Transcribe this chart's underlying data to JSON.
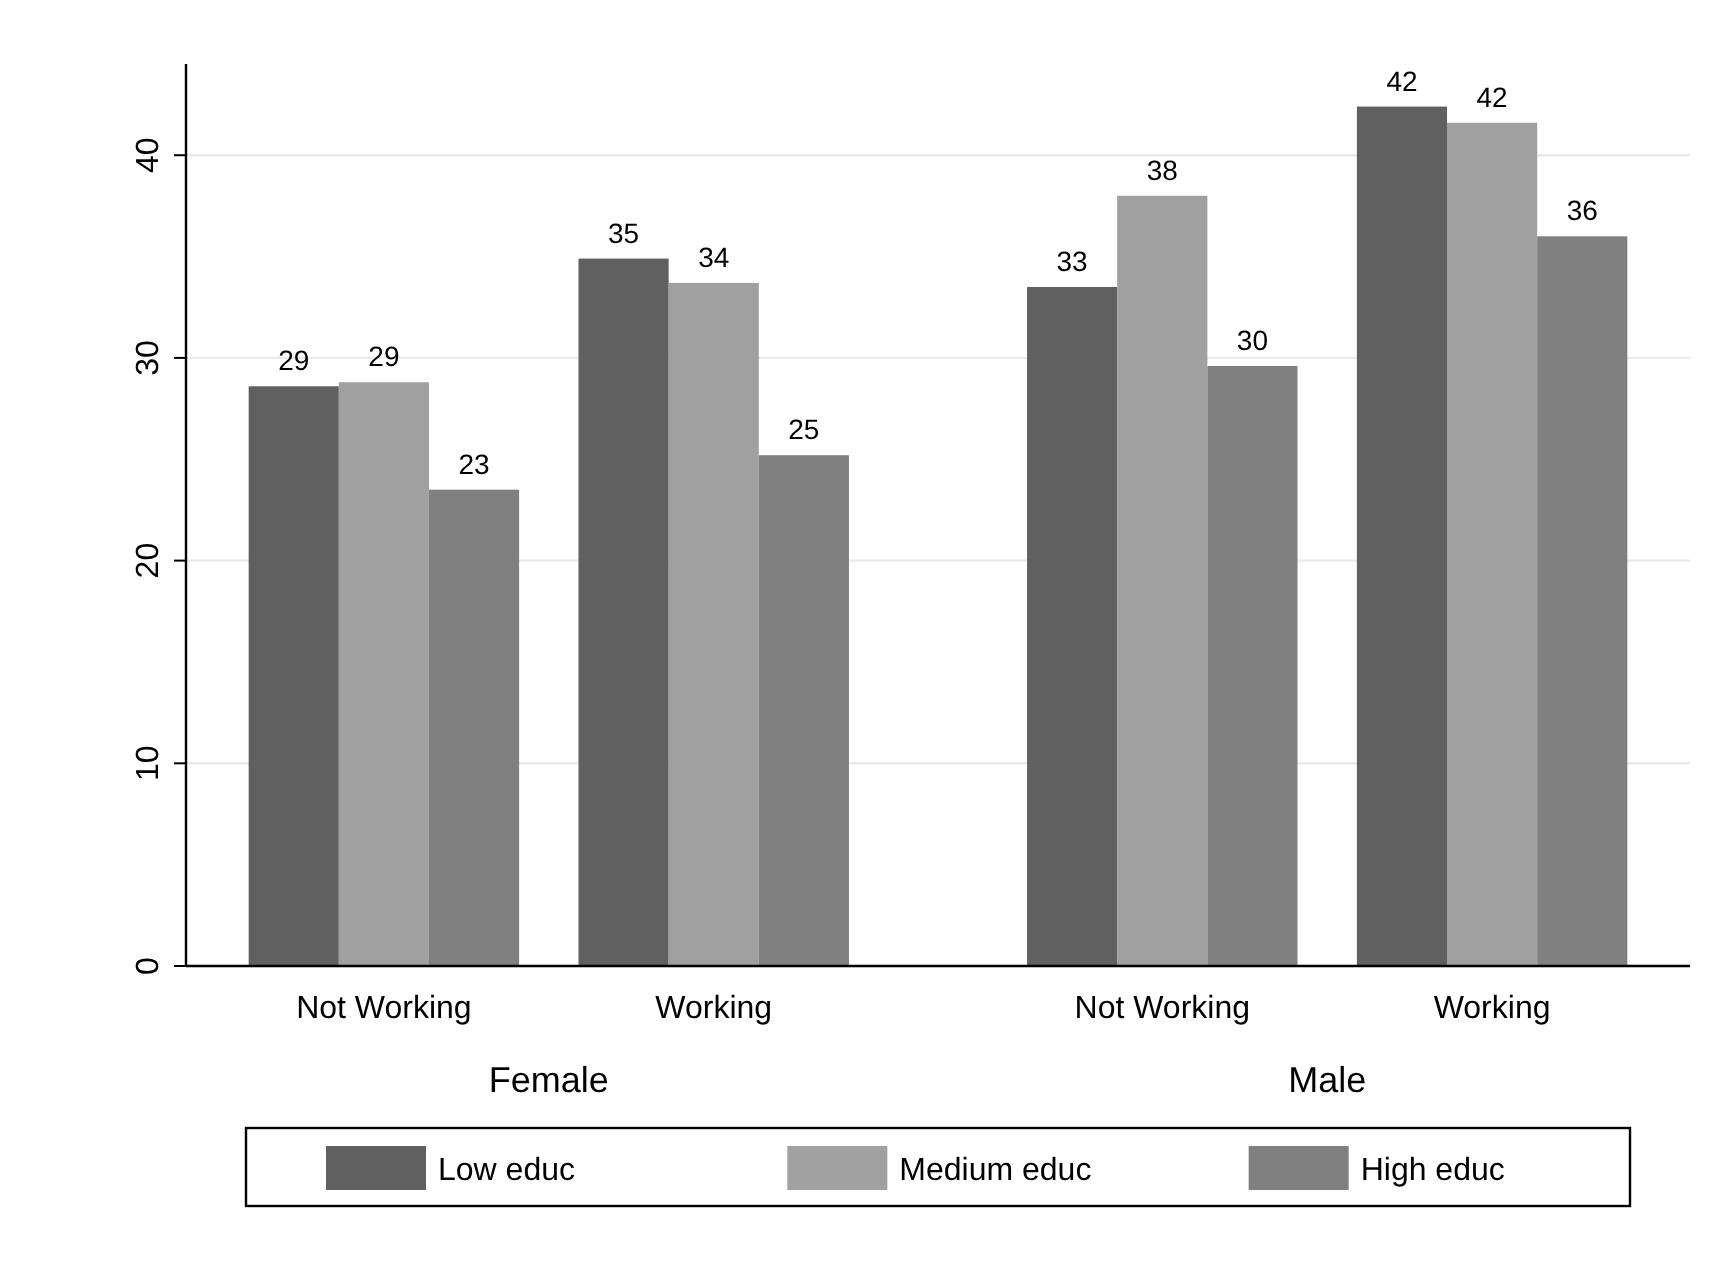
{
  "chart_data": {
    "type": "bar",
    "categories": [
      "Not Working",
      "Working",
      "Not Working",
      "Working"
    ],
    "series": [
      {
        "name": "Low educ",
        "color": "#606060",
        "values": [
          28.6,
          34.9,
          33.5,
          42.4
        ],
        "value_labels": [
          "29",
          "35",
          "33",
          "42"
        ]
      },
      {
        "name": "Medium educ",
        "color": "#a0a0a0",
        "values": [
          28.8,
          33.7,
          38.0,
          41.6
        ],
        "value_labels": [
          "29",
          "34",
          "38",
          "42"
        ]
      },
      {
        "name": "High educ",
        "color": "#808080",
        "values": [
          23.5,
          25.2,
          29.6,
          36.0
        ],
        "value_labels": [
          "23",
          "25",
          "30",
          "36"
        ]
      }
    ],
    "annotations": [
      "Female",
      "Male"
    ],
    "ylim": [
      0,
      44.5
    ],
    "yticks": [
      0,
      10,
      20,
      30,
      40
    ],
    "grid": "y",
    "legend": "bottom"
  }
}
